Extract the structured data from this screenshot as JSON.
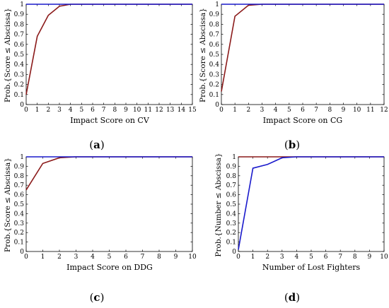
{
  "colors": {
    "series_red": "#8b1a1a",
    "series_blue": "#1a1acc",
    "axis": "#000000"
  },
  "chart_data": [
    {
      "type": "line",
      "panel_label": "a",
      "xlabel": "Impact Score on CV",
      "ylabel": "Prob.{Score ≤ Abscissa}",
      "xlim": [
        0,
        15
      ],
      "ylim": [
        0,
        1
      ],
      "xticks": [
        0,
        1,
        2,
        3,
        4,
        5,
        6,
        7,
        8,
        9,
        10,
        11,
        12,
        13,
        14,
        15
      ],
      "yticks": [
        0,
        0.1,
        0.2,
        0.3,
        0.4,
        0.5,
        0.6,
        0.7,
        0.8,
        0.9,
        1
      ],
      "series": [
        {
          "color": "red",
          "x": [
            0,
            1,
            2,
            3,
            4,
            15
          ],
          "y": [
            0.1,
            0.68,
            0.89,
            0.98,
            1,
            1
          ]
        },
        {
          "color": "blue",
          "x": [
            0,
            15
          ],
          "y": [
            1,
            1
          ]
        }
      ]
    },
    {
      "type": "line",
      "panel_label": "b",
      "xlabel": "Impact Score on CG",
      "ylabel": "Prob.{Score ≤ Abscissa}",
      "xlim": [
        0,
        12
      ],
      "ylim": [
        0,
        1
      ],
      "xticks": [
        0,
        1,
        2,
        3,
        4,
        5,
        6,
        7,
        8,
        9,
        10,
        11,
        12
      ],
      "yticks": [
        0,
        0.1,
        0.2,
        0.3,
        0.4,
        0.5,
        0.6,
        0.7,
        0.8,
        0.9,
        1
      ],
      "series": [
        {
          "color": "red",
          "x": [
            0,
            1,
            2,
            3,
            12
          ],
          "y": [
            0.13,
            0.88,
            0.99,
            1,
            1
          ]
        },
        {
          "color": "blue",
          "x": [
            0,
            12
          ],
          "y": [
            1,
            1
          ]
        }
      ]
    },
    {
      "type": "line",
      "panel_label": "c",
      "xlabel": "Impact Score on DDG",
      "ylabel": "Prob.{Score ≤ Abscissa}",
      "xlim": [
        0,
        10
      ],
      "ylim": [
        0,
        1
      ],
      "xticks": [
        0,
        1,
        2,
        3,
        4,
        5,
        6,
        7,
        8,
        9,
        10
      ],
      "yticks": [
        0,
        0.1,
        0.2,
        0.3,
        0.4,
        0.5,
        0.6,
        0.7,
        0.8,
        0.9,
        1
      ],
      "series": [
        {
          "color": "red",
          "x": [
            0,
            1,
            2,
            3,
            10
          ],
          "y": [
            0.65,
            0.93,
            0.99,
            1,
            1
          ]
        },
        {
          "color": "blue",
          "x": [
            0,
            10
          ],
          "y": [
            1,
            1
          ]
        }
      ]
    },
    {
      "type": "line",
      "panel_label": "d",
      "xlabel": "Number of Lost Fighters",
      "ylabel": "Prob.{Number ≤ Abscissa}",
      "xlim": [
        0,
        10
      ],
      "ylim": [
        0,
        1
      ],
      "xticks": [
        0,
        1,
        2,
        3,
        4,
        5,
        6,
        7,
        8,
        9,
        10
      ],
      "yticks": [
        0,
        0.1,
        0.2,
        0.3,
        0.4,
        0.5,
        0.6,
        0.7,
        0.8,
        0.9,
        1
      ],
      "series": [
        {
          "color": "red",
          "x": [
            0,
            10
          ],
          "y": [
            1,
            1
          ]
        },
        {
          "color": "blue",
          "x": [
            0,
            1,
            2,
            3,
            4,
            10
          ],
          "y": [
            0.02,
            0.88,
            0.92,
            0.99,
            1,
            1
          ]
        }
      ]
    }
  ]
}
